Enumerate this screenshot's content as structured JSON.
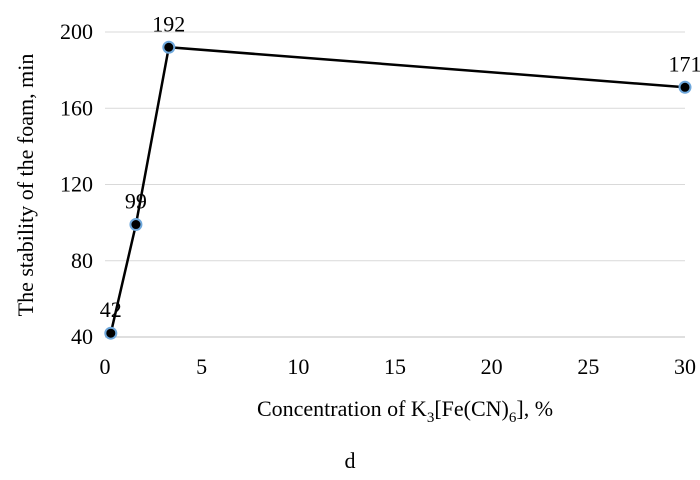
{
  "chart_data": {
    "type": "line",
    "title": "",
    "xlabel": "Concentration of K3[Fe(CN)6], %",
    "xlabel_parts": {
      "prefix": "Concentration of K",
      "sub1": "3",
      "middle": "[Fe(CN)",
      "sub2": "6",
      "suffix": "], %"
    },
    "ylabel": "The stability of the foam, min",
    "xlim": [
      0,
      30
    ],
    "ylim": [
      40,
      200
    ],
    "xticks": [
      0,
      5,
      10,
      15,
      20,
      25,
      30
    ],
    "yticks": [
      40,
      80,
      120,
      160,
      200
    ],
    "grid": "horizontal",
    "series": [
      {
        "x": [
          0.3,
          1.6,
          3.3,
          30
        ],
        "y": [
          42,
          99,
          192,
          171
        ],
        "labels": [
          "42",
          "99",
          "192",
          "171"
        ],
        "line_color": "#000000",
        "marker_fill": "#000000",
        "marker_edge": "#6fa8dc"
      }
    ]
  },
  "caption": "d"
}
